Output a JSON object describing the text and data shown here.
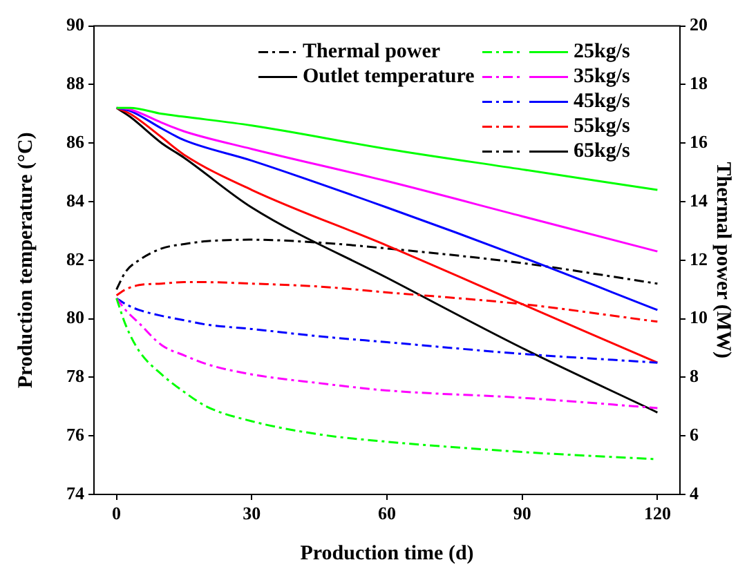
{
  "chart_data": {
    "type": "line",
    "xlabel": "Production time (d)",
    "ylabel": "Production temperature (°C)",
    "y2label": "Thermal power (MW)",
    "xlim": [
      -5,
      125
    ],
    "xticks": [
      0,
      30,
      60,
      90,
      120
    ],
    "ylim": [
      74,
      90
    ],
    "yticks": [
      74,
      76,
      78,
      80,
      82,
      84,
      86,
      88,
      90
    ],
    "y2lim": [
      4,
      20
    ],
    "y2ticks": [
      4,
      6,
      8,
      10,
      12,
      14,
      16,
      18,
      20
    ],
    "grid": false,
    "legend": "top right",
    "marker": "none",
    "annotations": [
      "Thermal power",
      "Outlet temperature"
    ],
    "series": [
      {
        "color": "#00ff00",
        "axis": "y2",
        "line_style": "dashdot",
        "x": [
          0,
          2,
          5,
          10,
          15,
          20,
          30,
          45,
          60,
          90,
          120
        ],
        "values": [
          10.7,
          9.8,
          8.9,
          8.1,
          7.5,
          7.0,
          6.5,
          6.05,
          5.8,
          5.45,
          5.2
        ]
      },
      {
        "name": "25kg/s",
        "color": "#00ff00",
        "axis": "y",
        "line_style": "solid",
        "x": [
          0,
          3,
          10,
          15,
          30,
          60,
          90,
          120
        ],
        "values": [
          87.2,
          87.2,
          87.0,
          86.9,
          86.6,
          85.8,
          85.1,
          84.4
        ]
      },
      {
        "color": "#ff00ff",
        "axis": "y2",
        "line_style": "dashdot",
        "x": [
          0,
          2,
          5,
          10,
          15,
          20,
          30,
          45,
          60,
          90,
          120
        ],
        "values": [
          10.7,
          10.3,
          9.85,
          9.1,
          8.75,
          8.45,
          8.1,
          7.8,
          7.55,
          7.3,
          6.95
        ]
      },
      {
        "name": "35kg/s",
        "color": "#ff00ff",
        "axis": "y",
        "line_style": "solid",
        "x": [
          0,
          3,
          10,
          15,
          30,
          60,
          90,
          120
        ],
        "values": [
          87.2,
          87.15,
          86.7,
          86.4,
          85.8,
          84.7,
          83.5,
          82.3
        ]
      },
      {
        "color": "#0000ff",
        "axis": "y2",
        "line_style": "dashdot",
        "x": [
          0,
          2,
          5,
          10,
          15,
          20,
          30,
          45,
          60,
          90,
          120
        ],
        "values": [
          10.7,
          10.5,
          10.3,
          10.1,
          9.95,
          9.8,
          9.65,
          9.4,
          9.2,
          8.8,
          8.5
        ]
      },
      {
        "name": "45kg/s",
        "color": "#0000ff",
        "axis": "y",
        "line_style": "solid",
        "x": [
          0,
          3,
          10,
          15,
          30,
          60,
          90,
          120
        ],
        "values": [
          87.2,
          87.1,
          86.5,
          86.1,
          85.4,
          83.8,
          82.1,
          80.3
        ]
      },
      {
        "color": "#ff0000",
        "axis": "y2",
        "line_style": "dashdot",
        "x": [
          0,
          2,
          5,
          10,
          15,
          20,
          30,
          45,
          60,
          90,
          120
        ],
        "values": [
          10.8,
          11.0,
          11.15,
          11.2,
          11.25,
          11.25,
          11.2,
          11.1,
          10.9,
          10.5,
          9.9
        ]
      },
      {
        "name": "55kg/s",
        "color": "#ff0000",
        "axis": "y",
        "line_style": "solid",
        "x": [
          0,
          3,
          10,
          15,
          30,
          60,
          90,
          120
        ],
        "values": [
          87.2,
          87.0,
          86.2,
          85.6,
          84.4,
          82.5,
          80.5,
          78.5
        ]
      },
      {
        "color": "#000000",
        "axis": "y2",
        "line_style": "dashdot",
        "x": [
          0,
          2,
          5,
          10,
          15,
          20,
          30,
          45,
          60,
          90,
          120
        ],
        "values": [
          11.0,
          11.6,
          12.0,
          12.4,
          12.55,
          12.65,
          12.7,
          12.6,
          12.4,
          11.9,
          11.2
        ]
      },
      {
        "name": "65kg/s",
        "color": "#000000",
        "axis": "y",
        "line_style": "solid",
        "x": [
          0,
          3,
          10,
          15,
          30,
          60,
          90,
          120
        ],
        "values": [
          87.2,
          86.9,
          86.0,
          85.5,
          83.8,
          81.4,
          79.0,
          76.8
        ]
      }
    ]
  }
}
